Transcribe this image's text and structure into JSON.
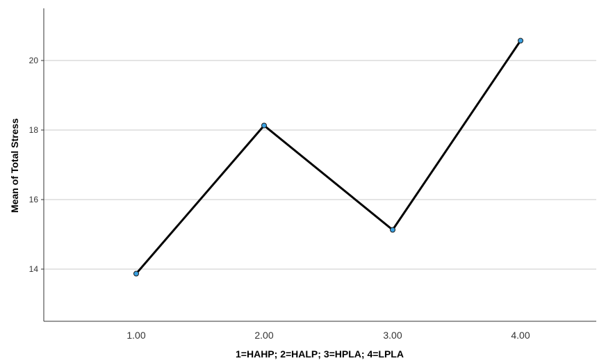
{
  "chart_data": {
    "type": "line",
    "x": [
      "1.00",
      "2.00",
      "3.00",
      "4.00"
    ],
    "values": [
      13.87,
      18.13,
      15.13,
      20.57
    ],
    "xlabel": "1=HAHP; 2=HALP; 3=HPLA; 4=LPLA",
    "ylabel": "Mean of Total Stress",
    "yticks": [
      "14",
      "16",
      "18",
      "20"
    ],
    "ylim": [
      12.5,
      21.5
    ],
    "grid": "horizontal",
    "legend": "none",
    "colors": {
      "line": "#000000",
      "marker": "#3aa0e0",
      "grid": "#c8c8c8",
      "axis": "#333333"
    }
  }
}
